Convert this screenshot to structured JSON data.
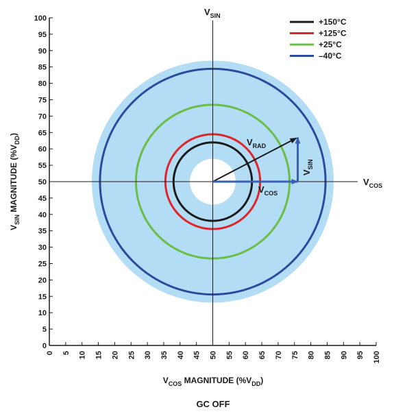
{
  "chart_data": {
    "type": "polar-circle-plot",
    "xlabel": {
      "main": "V",
      "sub": "COS",
      "rest": " MAGNITUDE (%V",
      "sub2": "DD",
      "end": ")"
    },
    "ylabel": {
      "main": "V",
      "sub": "SIN",
      "rest": " MAGNITUDE (%V",
      "sub2": "DD",
      "end": ")"
    },
    "caption": "GC OFF",
    "xlim": [
      0,
      100
    ],
    "ylim": [
      0,
      100
    ],
    "xticks": [
      0,
      5,
      10,
      15,
      20,
      25,
      30,
      35,
      40,
      45,
      50,
      55,
      60,
      65,
      70,
      75,
      80,
      85,
      90,
      95,
      100
    ],
    "yticks": [
      0,
      5,
      10,
      15,
      20,
      25,
      30,
      35,
      40,
      45,
      50,
      55,
      60,
      65,
      70,
      75,
      80,
      85,
      90,
      95,
      100
    ],
    "center": [
      50,
      50
    ],
    "band": {
      "inner_radius": 7,
      "outer_radius": 37,
      "color": "#b3dcf5"
    },
    "series": [
      {
        "name": "+150°C",
        "radius": 12,
        "color": "#1a1a1a"
      },
      {
        "name": "+125°C",
        "radius": 14.5,
        "color": "#e0242b"
      },
      {
        "name": "+25°C",
        "radius": 23.5,
        "color": "#6cbd45"
      },
      {
        "name": "–40°C",
        "radius": 34.5,
        "color": "#2a4a9c"
      }
    ],
    "axis_labels": {
      "vsin": {
        "main": "V",
        "sub": "SIN"
      },
      "vcos": {
        "main": "V",
        "sub": "COS"
      }
    },
    "vectors": {
      "vrad": {
        "main": "V",
        "sub": "RAD",
        "to": [
          76,
          63.5
        ]
      },
      "vcos": {
        "main": "V",
        "sub": "COS",
        "to": [
          76,
          50
        ]
      },
      "vsin": {
        "main": "V",
        "sub": "SIN",
        "from": [
          76,
          50
        ],
        "to": [
          76,
          63.5
        ]
      }
    },
    "colors": {
      "vector_blue": "#3a5fb0",
      "axis": "#1a1a1a"
    }
  }
}
